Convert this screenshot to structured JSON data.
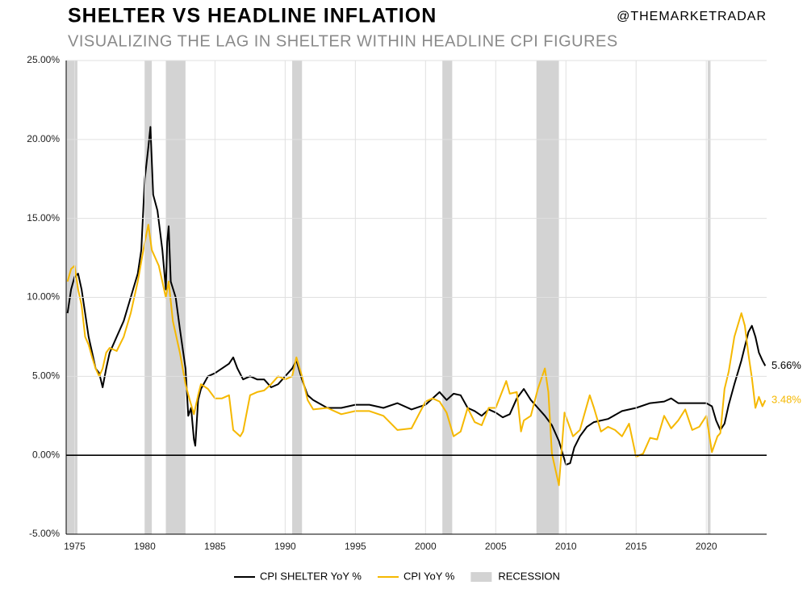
{
  "header": {
    "title": "SHELTER VS HEADLINE INFLATION",
    "handle": "@THEMARKETRADAR",
    "subtitle": "VISUALIZING THE LAG IN SHELTER WITHIN HEADLINE CPI FIGURES"
  },
  "chart_data": {
    "type": "line",
    "xlim": [
      1974.4,
      2024.3
    ],
    "xticks": [
      1975,
      1980,
      1985,
      1990,
      1995,
      2000,
      2005,
      2010,
      2015,
      2020
    ],
    "ylim": [
      -5,
      25
    ],
    "yticks": [
      {
        "value": -5,
        "label": "-5.00%"
      },
      {
        "value": 0,
        "label": "0.00%"
      },
      {
        "value": 5,
        "label": "5.00%"
      },
      {
        "value": 10,
        "label": "10.00%"
      },
      {
        "value": 15,
        "label": "15.00%"
      },
      {
        "value": 20,
        "label": "20.00%"
      },
      {
        "value": 25,
        "label": "25.00%"
      }
    ],
    "grid": true,
    "recession_label": "RECESSION",
    "recession_color": "#d3d3d3",
    "recessions": [
      [
        1973.9,
        1975.2
      ],
      [
        1980.0,
        1980.5
      ],
      [
        1981.5,
        1982.9
      ],
      [
        1990.5,
        1991.2
      ],
      [
        2001.2,
        2001.9
      ],
      [
        2007.9,
        2009.5
      ],
      [
        2020.1,
        2020.3
      ]
    ],
    "series": [
      {
        "name": "CPI SHELTER YoY %",
        "color": "#000000",
        "end_label": "5.66%",
        "x": [
          1974.5,
          1974.75,
          1975.0,
          1975.25,
          1975.5,
          1975.75,
          1976.0,
          1976.25,
          1976.5,
          1976.75,
          1977.0,
          1977.25,
          1977.5,
          1977.75,
          1978.0,
          1978.5,
          1979.0,
          1979.5,
          1979.75,
          1980.0,
          1980.25,
          1980.4,
          1980.6,
          1980.9,
          1981.25,
          1981.5,
          1981.6,
          1981.7,
          1981.85,
          1982.2,
          1982.5,
          1982.9,
          1983.1,
          1983.3,
          1983.5,
          1983.6,
          1983.8,
          1984.0,
          1984.5,
          1985.0,
          1985.5,
          1986.0,
          1986.3,
          1986.6,
          1987.0,
          1987.5,
          1988.0,
          1988.5,
          1989.0,
          1989.5,
          1990.0,
          1990.5,
          1990.8,
          1991.2,
          1991.6,
          1992,
          1993,
          1994,
          1995,
          1996,
          1997,
          1998,
          1999,
          2000,
          2001,
          2001.5,
          2002,
          2002.5,
          2003,
          2003.5,
          2004,
          2004.5,
          2005,
          2005.5,
          2006,
          2006.5,
          2007,
          2007.5,
          2008,
          2008.5,
          2009,
          2009.5,
          2010,
          2010.3,
          2010.6,
          2011,
          2011.5,
          2012,
          2013,
          2014,
          2015,
          2016,
          2017,
          2017.5,
          2018,
          2019,
          2020,
          2020.4,
          2020.7,
          2021.0,
          2021.3,
          2021.6,
          2022.0,
          2022.5,
          2023.0,
          2023.25,
          2023.5,
          2023.75,
          2024.0,
          2024.2
        ],
        "values": [
          9.0,
          10.5,
          11.3,
          11.5,
          10.5,
          9.0,
          7.5,
          6.5,
          5.5,
          5.2,
          4.3,
          5.5,
          6.5,
          7.0,
          7.5,
          8.5,
          10.0,
          11.5,
          13.0,
          17.5,
          19.5,
          20.8,
          16.5,
          15.5,
          13.0,
          10.5,
          13.5,
          14.5,
          11.0,
          10.0,
          8.0,
          5.5,
          2.5,
          3.0,
          1.0,
          0.6,
          3.5,
          4.2,
          5.0,
          5.2,
          5.5,
          5.8,
          6.2,
          5.5,
          4.8,
          5.0,
          4.8,
          4.8,
          4.3,
          4.5,
          5.0,
          5.5,
          6.0,
          4.8,
          3.8,
          3.5,
          3.0,
          3.0,
          3.2,
          3.2,
          3.0,
          3.3,
          2.9,
          3.2,
          4.0,
          3.5,
          3.9,
          3.8,
          3.0,
          2.8,
          2.5,
          2.9,
          2.7,
          2.4,
          2.6,
          3.6,
          4.2,
          3.5,
          3.0,
          2.5,
          1.9,
          0.9,
          -0.6,
          -0.5,
          0.5,
          1.2,
          1.8,
          2.1,
          2.3,
          2.8,
          3.0,
          3.3,
          3.4,
          3.6,
          3.3,
          3.3,
          3.3,
          3.1,
          2.2,
          1.6,
          2.0,
          3.2,
          4.5,
          6.0,
          7.8,
          8.2,
          7.5,
          6.5,
          6.0,
          5.66
        ]
      },
      {
        "name": "CPI YoY %",
        "color": "#f5b800",
        "end_label": "3.48%",
        "x": [
          1974.5,
          1974.75,
          1975.0,
          1975.25,
          1975.5,
          1975.75,
          1976.0,
          1976.25,
          1976.5,
          1976.75,
          1977.0,
          1977.25,
          1977.5,
          1978.0,
          1978.5,
          1979.0,
          1979.5,
          1980.0,
          1980.25,
          1980.5,
          1981.0,
          1981.5,
          1981.7,
          1982.0,
          1982.5,
          1982.9,
          1983.2,
          1983.5,
          1983.8,
          1984.0,
          1984.5,
          1985.0,
          1985.5,
          1986.0,
          1986.3,
          1986.8,
          1987.0,
          1987.5,
          1988.0,
          1988.5,
          1989.0,
          1989.5,
          1990.0,
          1990.5,
          1990.8,
          1991.2,
          1991.6,
          1992,
          1993,
          1994,
          1995,
          1996,
          1997,
          1998,
          1999,
          2000,
          2000.5,
          2001,
          2001.5,
          2002,
          2002.5,
          2003,
          2003.5,
          2004,
          2004.5,
          2005,
          2005.75,
          2006,
          2006.5,
          2006.8,
          2007,
          2007.5,
          2008,
          2008.5,
          2008.75,
          2009,
          2009.5,
          2009.9,
          2010.5,
          2011,
          2011.7,
          2012,
          2012.5,
          2013,
          2013.5,
          2014,
          2014.5,
          2015,
          2015.5,
          2016,
          2016.5,
          2017,
          2017.5,
          2018,
          2018.5,
          2019,
          2019.5,
          2020,
          2020.4,
          2020.8,
          2021.0,
          2021.3,
          2021.6,
          2022.0,
          2022.5,
          2022.75,
          2023.0,
          2023.25,
          2023.5,
          2023.75,
          2024.0,
          2024.2
        ],
        "values": [
          11.0,
          11.8,
          12.0,
          10.5,
          9.5,
          7.5,
          7.0,
          6.2,
          5.5,
          5.0,
          5.5,
          6.5,
          6.8,
          6.6,
          7.5,
          9.0,
          11.0,
          13.5,
          14.6,
          13.0,
          12.0,
          10.0,
          11.0,
          8.5,
          6.5,
          4.5,
          3.5,
          2.6,
          3.8,
          4.5,
          4.2,
          3.6,
          3.6,
          3.8,
          1.6,
          1.2,
          1.5,
          3.8,
          4.0,
          4.1,
          4.5,
          5.0,
          4.8,
          5.0,
          6.2,
          5.0,
          3.5,
          2.9,
          3.0,
          2.6,
          2.8,
          2.8,
          2.5,
          1.6,
          1.7,
          3.4,
          3.6,
          3.4,
          2.7,
          1.2,
          1.5,
          3.0,
          2.1,
          1.9,
          3.0,
          3.0,
          4.7,
          3.9,
          4.0,
          1.5,
          2.2,
          2.5,
          4.2,
          5.5,
          4.0,
          0.1,
          -1.9,
          2.7,
          1.2,
          1.6,
          3.8,
          3.0,
          1.5,
          1.8,
          1.6,
          1.2,
          2.0,
          -0.1,
          0.1,
          1.1,
          1.0,
          2.5,
          1.7,
          2.2,
          2.9,
          1.6,
          1.8,
          2.5,
          0.2,
          1.2,
          1.4,
          4.2,
          5.3,
          7.5,
          9.0,
          8.2,
          6.4,
          4.9,
          3.0,
          3.7,
          3.1,
          3.48
        ]
      }
    ]
  }
}
